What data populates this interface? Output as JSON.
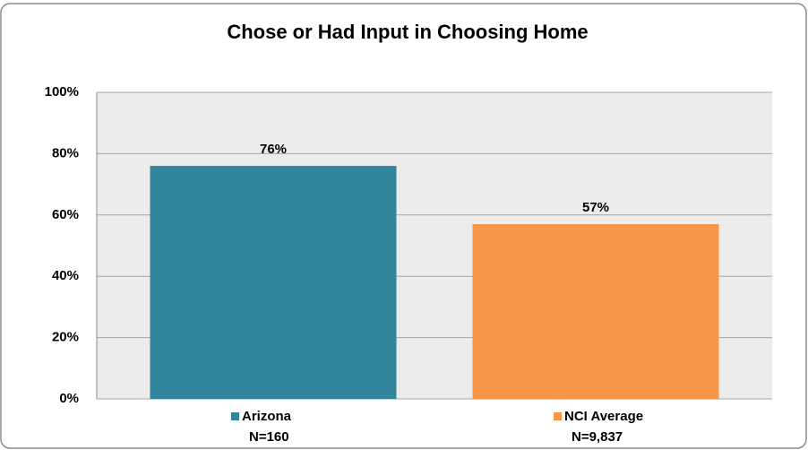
{
  "chart_data": {
    "type": "bar",
    "title": "Chose or Had Input in Choosing Home",
    "categories": [
      "Arizona",
      "NCI Average"
    ],
    "sample_sizes": [
      "N=160",
      "N=9,837"
    ],
    "values": [
      76,
      57
    ],
    "value_labels": [
      "76%",
      "57%"
    ],
    "colors": [
      "#31859c",
      "#f79646"
    ],
    "ylim": [
      0,
      100
    ],
    "yticks": [
      {
        "value": 0,
        "label": "0%"
      },
      {
        "value": 20,
        "label": "20%"
      },
      {
        "value": 40,
        "label": "40%"
      },
      {
        "value": 60,
        "label": "60%"
      },
      {
        "value": 80,
        "label": "80%"
      },
      {
        "value": 100,
        "label": "100%"
      }
    ],
    "grid": true
  }
}
